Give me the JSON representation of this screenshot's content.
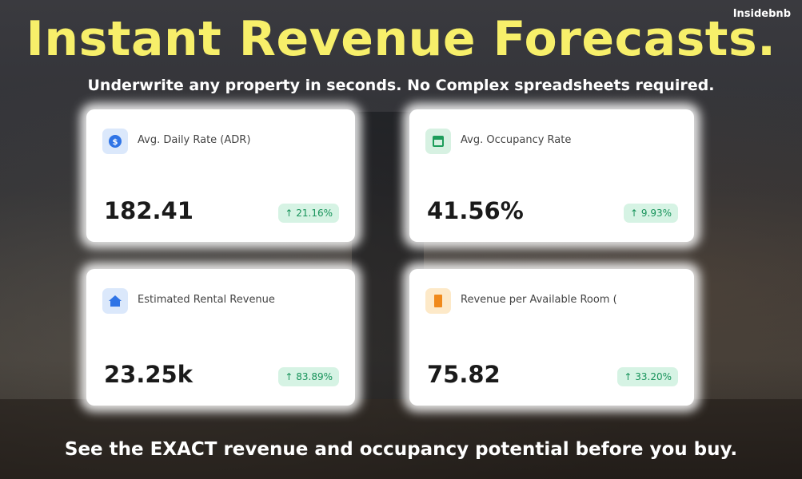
{
  "brand": "Insidebnb",
  "title": "Instant Revenue Forecasts.",
  "subtitle": "Underwrite any property in seconds. No Complex spreadsheets required.",
  "cards": [
    {
      "label": "Avg. Daily Rate (ADR)",
      "value": "182.41",
      "change": "↑ 21.16%"
    },
    {
      "label": "Avg. Occupancy Rate",
      "value": "41.56%",
      "change": "↑ 9.93%"
    },
    {
      "label": "Estimated Rental Revenue",
      "value": "23.25k",
      "change": "↑ 83.89%"
    },
    {
      "label": "Revenue per Available Room (",
      "value": "75.82",
      "change": "↑ 33.20%"
    }
  ],
  "footer": "See the EXACT revenue and occupancy potential before you buy."
}
